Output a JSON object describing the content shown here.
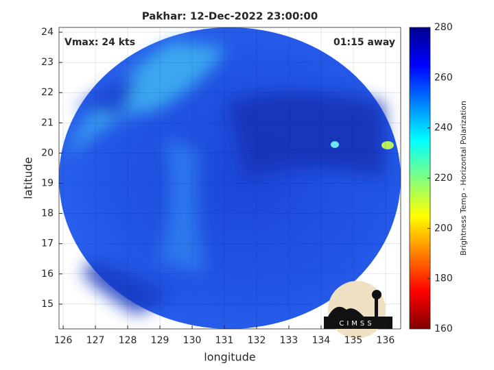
{
  "chart_data": {
    "type": "image",
    "title": "Pakhar: 12-Dec-2022 23:00:00",
    "annotations": [
      "Vmax: 24 kts",
      "01:15 away"
    ],
    "x_label": "longitude",
    "y_label": "latitude",
    "xlim": [
      125.87,
      136.47
    ],
    "ylim": [
      14.18,
      24.16
    ],
    "xticks": [
      126,
      127,
      128,
      129,
      130,
      131,
      132,
      133,
      134,
      135,
      136
    ],
    "yticks": [
      15,
      16,
      17,
      18,
      19,
      20,
      21,
      22,
      23,
      24
    ],
    "grid": true,
    "colorbar": {
      "label": "Brightness Temp - Horizontal Polarization",
      "colormap": "jet",
      "clim": [
        160,
        280
      ],
      "ticks": [
        160,
        180,
        200,
        220,
        240,
        260,
        280
      ]
    },
    "logo": "CIMSS"
  }
}
